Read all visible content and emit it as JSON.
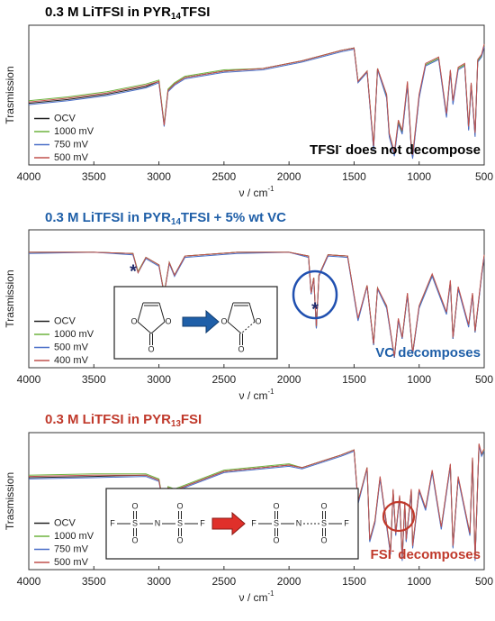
{
  "chart_data": [
    {
      "type": "line",
      "title": [
        "0.3 M LiTFSI in PYR",
        "14",
        "TFSI"
      ],
      "title_color": "#000000",
      "xlabel": [
        "ν / cm",
        "-1"
      ],
      "ylabel": "Trasmission",
      "annotation": [
        "TFSI",
        "-",
        " does not decompose"
      ],
      "annotation_color": "#000000",
      "xlim": [
        4000,
        500
      ],
      "xticks": [
        4000,
        3500,
        3000,
        2500,
        2000,
        1500,
        1000,
        500
      ],
      "ylim": [
        0,
        100
      ],
      "legend": "lower left",
      "x": [
        4000,
        3700,
        3400,
        3100,
        3000,
        2960,
        2930,
        2880,
        2800,
        2500,
        2200,
        1900,
        1600,
        1500,
        1470,
        1400,
        1350,
        1320,
        1250,
        1230,
        1190,
        1160,
        1130,
        1090,
        1060,
        1050,
        1000,
        950,
        850,
        790,
        760,
        740,
        700,
        650,
        620,
        600,
        570,
        550,
        520,
        500
      ],
      "series": [
        {
          "name": "OCV",
          "color": "#222222",
          "values": [
            45,
            48,
            52,
            58,
            62,
            28,
            55,
            60,
            65,
            70,
            72,
            78,
            86,
            88,
            62,
            70,
            10,
            72,
            50,
            20,
            5,
            30,
            22,
            60,
            10,
            3,
            50,
            75,
            80,
            35,
            70,
            45,
            72,
            75,
            25,
            60,
            20,
            78,
            82,
            90
          ]
        },
        {
          "name": "1000 mV",
          "color": "#6fb43f",
          "values": [
            47,
            50,
            54,
            60,
            63,
            29,
            56,
            61,
            66,
            71,
            72,
            78,
            86,
            88,
            62,
            70,
            11,
            72,
            51,
            21,
            6,
            31,
            23,
            61,
            11,
            4,
            51,
            75,
            80,
            36,
            70,
            46,
            72,
            75,
            26,
            60,
            21,
            78,
            82,
            90
          ]
        },
        {
          "name": "750 mV",
          "color": "#4a6fc8",
          "values": [
            44,
            47,
            51,
            57,
            61,
            27,
            54,
            59,
            64,
            69,
            71,
            77,
            85,
            87,
            61,
            69,
            9,
            71,
            49,
            19,
            4,
            29,
            21,
            59,
            9,
            2,
            49,
            74,
            79,
            34,
            69,
            44,
            71,
            74,
            24,
            59,
            19,
            77,
            81,
            89
          ]
        },
        {
          "name": "500 mV",
          "color": "#c0504d",
          "values": [
            46,
            49,
            53,
            59,
            62,
            28,
            55,
            60,
            65,
            70,
            72,
            78,
            86,
            88,
            62,
            70,
            12,
            72,
            52,
            22,
            7,
            32,
            24,
            62,
            12,
            5,
            52,
            76,
            81,
            37,
            71,
            47,
            73,
            76,
            27,
            61,
            22,
            79,
            83,
            91
          ]
        }
      ]
    },
    {
      "type": "line",
      "title": [
        "0.3 M LiTFSI in PYR",
        "14",
        "TFSI + 5% wt VC"
      ],
      "title_color": "#1f5fa8",
      "xlabel": [
        "ν / cm",
        "-1"
      ],
      "ylabel": "Trasmission",
      "annotation": [
        "VC decomposes"
      ],
      "annotation_color": "#1f5fa8",
      "asterisks": [
        "*",
        "*"
      ],
      "inset_atoms": [
        "O",
        "O",
        "O",
        "O",
        "O",
        "O"
      ],
      "xlim": [
        4000,
        500
      ],
      "xticks": [
        4000,
        3500,
        3000,
        2500,
        2000,
        1500,
        1000,
        500
      ],
      "ylim": [
        0,
        100
      ],
      "legend": "lower left",
      "x": [
        4000,
        3500,
        3200,
        3160,
        3100,
        3000,
        2960,
        2920,
        2880,
        2800,
        2400,
        2000,
        1850,
        1830,
        1810,
        1790,
        1770,
        1700,
        1550,
        1470,
        1400,
        1350,
        1320,
        1250,
        1190,
        1160,
        1130,
        1090,
        1050,
        1000,
        900,
        790,
        760,
        740,
        700,
        620,
        590,
        570,
        520,
        500
      ],
      "series": [
        {
          "name": "OCV",
          "color": "#222222",
          "values": [
            88,
            88,
            87,
            72,
            84,
            78,
            55,
            80,
            70,
            85,
            88,
            88,
            85,
            55,
            68,
            28,
            70,
            86,
            85,
            35,
            62,
            15,
            60,
            45,
            5,
            35,
            20,
            55,
            8,
            45,
            70,
            40,
            65,
            20,
            60,
            30,
            55,
            25,
            70,
            85
          ]
        },
        {
          "name": "1000 mV",
          "color": "#6fb43f",
          "values": [
            88,
            88,
            87,
            73,
            84,
            78,
            56,
            80,
            70,
            85,
            88,
            88,
            85,
            56,
            68,
            29,
            70,
            86,
            85,
            35,
            62,
            16,
            60,
            45,
            6,
            35,
            21,
            55,
            9,
            45,
            70,
            40,
            65,
            21,
            60,
            30,
            55,
            26,
            70,
            85
          ]
        },
        {
          "name": "500 mV",
          "color": "#4a6fc8",
          "values": [
            87,
            88,
            86,
            72,
            83,
            77,
            55,
            79,
            69,
            84,
            87,
            88,
            84,
            55,
            67,
            28,
            69,
            85,
            84,
            34,
            61,
            15,
            59,
            44,
            5,
            34,
            20,
            54,
            8,
            44,
            69,
            39,
            64,
            20,
            59,
            29,
            54,
            25,
            69,
            84
          ]
        },
        {
          "name": "400 mV",
          "color": "#c0504d",
          "values": [
            88,
            88,
            87,
            72,
            84,
            78,
            55,
            80,
            70,
            85,
            88,
            88,
            85,
            56,
            68,
            30,
            70,
            86,
            85,
            36,
            62,
            16,
            60,
            46,
            6,
            36,
            21,
            56,
            9,
            46,
            71,
            41,
            66,
            21,
            61,
            31,
            56,
            26,
            71,
            86
          ]
        }
      ]
    },
    {
      "type": "line",
      "title": [
        "0.3 M LiTFSI in PYR",
        "13",
        "FSI"
      ],
      "title_color": "#c0392b",
      "xlabel": [
        "ν / cm",
        "-1"
      ],
      "ylabel": "Trasmission",
      "annotation": [
        "FSI",
        "-",
        " decomposes"
      ],
      "annotation_color": "#c0392b",
      "inset_atoms": [
        "F",
        "S",
        "N",
        "S",
        "F",
        "O",
        "O",
        "O",
        "O",
        "F",
        "S",
        "N",
        "S",
        "F",
        "O",
        "O",
        "O",
        "O"
      ],
      "xlim": [
        4000,
        500
      ],
      "xticks": [
        4000,
        3500,
        3000,
        2500,
        2000,
        1500,
        1000,
        500
      ],
      "ylim": [
        0,
        100
      ],
      "legend": "lower left",
      "x": [
        4000,
        3500,
        3100,
        3000,
        2960,
        2930,
        2880,
        2500,
        2000,
        1900,
        1600,
        1500,
        1470,
        1400,
        1380,
        1340,
        1300,
        1220,
        1200,
        1180,
        1150,
        1130,
        1110,
        1100,
        1060,
        1050,
        1000,
        950,
        900,
        830,
        760,
        740,
        700,
        610,
        590,
        570,
        540,
        520,
        500
      ],
      "series": [
        {
          "name": "OCV",
          "color": "#222222",
          "values": [
            70,
            71,
            72,
            68,
            45,
            62,
            60,
            75,
            80,
            78,
            88,
            92,
            50,
            78,
            20,
            35,
            70,
            10,
            60,
            25,
            55,
            5,
            50,
            20,
            60,
            15,
            60,
            45,
            75,
            30,
            80,
            15,
            70,
            25,
            85,
            5,
            96,
            88,
            92
          ]
        },
        {
          "name": "1000 mV",
          "color": "#6fb43f",
          "values": [
            72,
            73,
            73,
            69,
            46,
            63,
            61,
            76,
            81,
            78,
            88,
            92,
            51,
            78,
            21,
            36,
            70,
            11,
            60,
            26,
            55,
            6,
            50,
            21,
            60,
            16,
            60,
            46,
            75,
            31,
            80,
            16,
            70,
            26,
            85,
            6,
            96,
            88,
            92
          ]
        },
        {
          "name": "750 mV",
          "color": "#4a6fc8",
          "values": [
            69,
            70,
            71,
            67,
            44,
            61,
            59,
            74,
            79,
            77,
            87,
            91,
            49,
            77,
            19,
            34,
            69,
            9,
            59,
            24,
            54,
            4,
            49,
            19,
            59,
            14,
            59,
            44,
            74,
            29,
            79,
            14,
            69,
            24,
            84,
            4,
            95,
            87,
            91
          ]
        },
        {
          "name": "500 mV",
          "color": "#c0504d",
          "values": [
            71,
            72,
            72,
            68,
            45,
            62,
            60,
            75,
            80,
            78,
            88,
            92,
            51,
            78,
            21,
            36,
            71,
            11,
            61,
            26,
            56,
            7,
            51,
            21,
            61,
            16,
            61,
            46,
            76,
            31,
            81,
            16,
            71,
            26,
            86,
            6,
            97,
            89,
            93
          ]
        }
      ]
    }
  ]
}
